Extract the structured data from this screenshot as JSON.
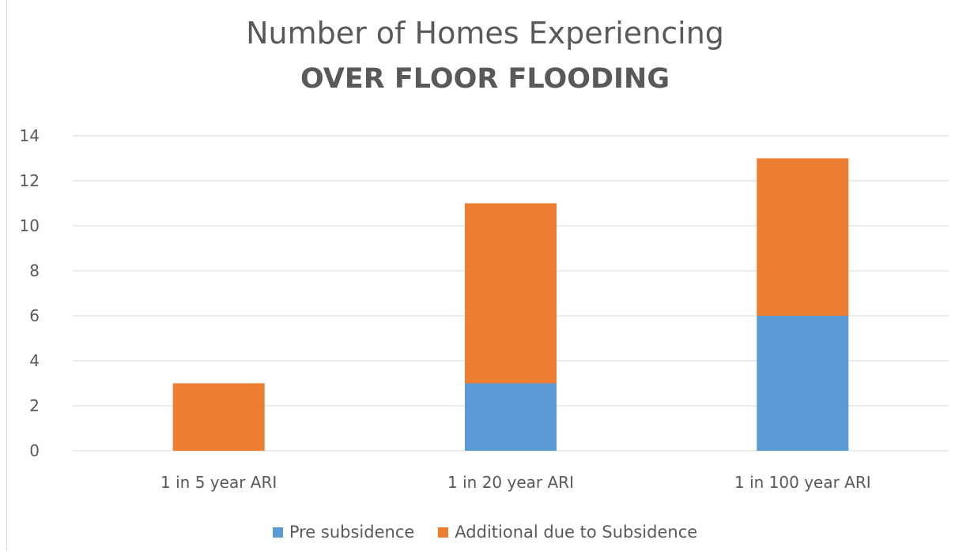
{
  "chart_data": {
    "type": "bar",
    "stacked": true,
    "title": "Number of Homes Experiencing",
    "subtitle": "OVER FLOOR FLOODING",
    "xlabel": "",
    "ylabel": "",
    "categories": [
      "1 in 5 year ARI",
      "1 in 20 year ARI",
      "1 in 100 year ARI"
    ],
    "series": [
      {
        "name": "Pre subsidence",
        "values": [
          0,
          3,
          6
        ],
        "color": "#5b9bd5"
      },
      {
        "name": "Additional due to Subsidence",
        "values": [
          3,
          8,
          7
        ],
        "color": "#ed7d31"
      }
    ],
    "ylim": [
      0,
      14
    ],
    "yticks": [
      "0",
      "2",
      "4",
      "6",
      "8",
      "10",
      "12",
      "14"
    ],
    "grid": true,
    "legend_position": "bottom"
  }
}
